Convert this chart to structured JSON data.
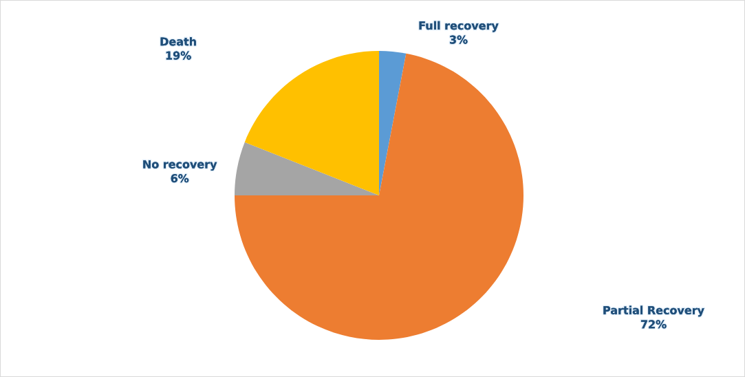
{
  "chart_data": {
    "type": "pie",
    "categories": [
      "Full recovery",
      "Partial Recovery",
      "No recovery",
      "Death"
    ],
    "values": [
      3,
      72,
      6,
      19
    ],
    "colors": [
      "#5b9bd5",
      "#ed7d31",
      "#a5a5a5",
      "#ffc000"
    ],
    "value_labels": [
      "3%",
      "72%",
      "6%",
      "19%"
    ]
  }
}
